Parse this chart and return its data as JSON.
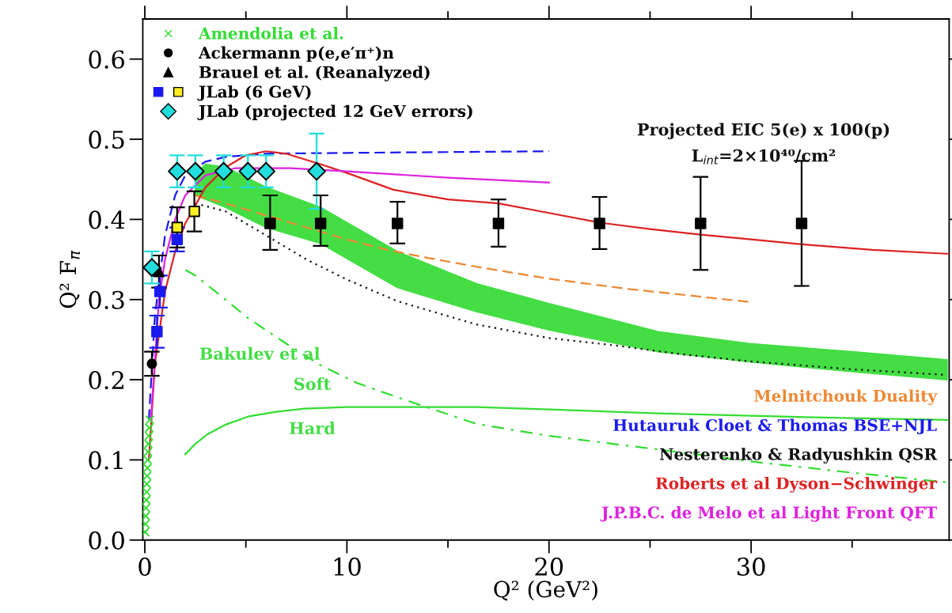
{
  "chart_data": {
    "type": "line",
    "xlabel": "Q² (GeV²)",
    "ylabel": "Q² F$_{π}$",
    "xlim": [
      -0.1,
      39.8
    ],
    "ylim": [
      0,
      0.65
    ],
    "xticks": [
      0,
      {
        "value": 5,
        "label": null
      },
      10,
      {
        "value": 15,
        "label": null
      },
      20,
      {
        "value": 25,
        "label": null
      },
      30,
      {
        "value": 35,
        "label": null
      }
    ],
    "yticks": [
      {
        "value": 0,
        "label": "0.0"
      },
      0.1,
      0.2,
      0.3,
      0.4,
      0.5,
      0.6
    ],
    "grid": false,
    "legend": "top left",
    "annotations": [
      "Projected EIC 5(e) x 100(p)",
      "L$_{int}$=2×10⁴⁰/cm²",
      "Bakulev et al",
      "Soft",
      "Hard"
    ],
    "series": [
      {
        "color": "#44dd44",
        "x": [
          2.5,
          3,
          4,
          6,
          8.7,
          12.5,
          16.4,
          20,
          25.4,
          30,
          35,
          39.7
        ],
        "values": [
          null,
          null,
          null,
          null,
          null,
          null,
          null,
          null,
          null,
          null,
          null,
          null
        ],
        "upper": [
          0.455,
          0.469,
          0.465,
          0.44,
          0.415,
          0.36,
          0.32,
          0.295,
          0.26,
          0.245,
          0.235,
          0.225
        ],
        "lower": [
          0.43,
          0.425,
          0.415,
          0.39,
          0.37,
          0.315,
          0.285,
          0.262,
          0.235,
          0.222,
          0.21,
          0.2
        ]
      },
      {
        "color": "#33dd33",
        "line_style": "dashdot",
        "x": [
          2.0,
          2.5,
          3.5,
          5.1,
          7,
          8.7,
          10.5,
          12.5,
          16.4,
          20,
          25.4,
          30,
          35,
          39.7
        ],
        "values": [
          0.337,
          0.33,
          0.31,
          0.277,
          0.245,
          0.218,
          0.196,
          0.178,
          0.145,
          0.13,
          0.113,
          0.098,
          0.084,
          0.072
        ]
      },
      {
        "color": "#33dd33",
        "line_style": "solid",
        "x": [
          2.0,
          2.5,
          3.1,
          4,
          5.1,
          6.5,
          7.9,
          10,
          12.5,
          16.4,
          20,
          25.4,
          30,
          35,
          39.7
        ],
        "values": [
          0.107,
          0.12,
          0.132,
          0.144,
          0.154,
          0.16,
          0.164,
          0.166,
          0.166,
          0.166,
          0.163,
          0.158,
          0.155,
          0.152,
          0.15
        ]
      },
      {
        "name": "Melnitchouk Duality",
        "color": "#ee8833",
        "line_style": "dashed",
        "x": [
          2.5,
          4,
          6,
          8,
          10,
          12,
          14,
          16.4,
          20,
          24,
          27,
          29.9
        ],
        "values": [
          0.43,
          0.42,
          0.405,
          0.39,
          0.375,
          0.362,
          0.352,
          0.341,
          0.326,
          0.313,
          0.305,
          0.297
        ]
      },
      {
        "name": "Hutauruk Cloet & Thomas BSE+NJL",
        "color": "#1a1aee",
        "line_style": "dashed",
        "x": [
          0.2,
          0.5,
          1,
          1.5,
          2,
          3,
          4,
          6,
          10,
          15,
          20
        ],
        "values": [
          0.15,
          0.28,
          0.38,
          0.43,
          0.455,
          0.472,
          0.478,
          0.482,
          0.483,
          0.484,
          0.485
        ]
      },
      {
        "name": "Nesterenko & Radyushkin QSR",
        "color": "#111111",
        "line_style": "dotted",
        "x": [
          2.5,
          4,
          6,
          8,
          10,
          12.5,
          16.4,
          20,
          23.2,
          26.5,
          29.9,
          35,
          39.7
        ],
        "values": [
          0.42,
          0.41,
          0.38,
          0.35,
          0.325,
          0.298,
          0.269,
          0.252,
          0.243,
          0.232,
          0.223,
          0.213,
          0.206
        ]
      },
      {
        "name": "Roberts et al Dyson−Schwinger",
        "color": "#dd2222",
        "line_style": "solid",
        "x": [
          0.2,
          0.5,
          1,
          1.5,
          2,
          3,
          4,
          5,
          6,
          7,
          8.8,
          10,
          12.3,
          15,
          17.5,
          20,
          22.5,
          25,
          27.5,
          30,
          32.5,
          36,
          39.8
        ],
        "values": [
          0.1,
          0.22,
          0.31,
          0.36,
          0.395,
          0.44,
          0.465,
          0.48,
          0.485,
          0.482,
          0.468,
          0.458,
          0.437,
          0.425,
          0.42,
          0.408,
          0.396,
          0.388,
          0.381,
          0.375,
          0.369,
          0.362,
          0.357
        ]
      },
      {
        "name": "J.P.B.C. de Melo et al Light Front QFT",
        "color": "#dd22dd",
        "line_style": "solid",
        "x": [
          0.3,
          0.7,
          1,
          1.5,
          2,
          3,
          4.5,
          7.2,
          10,
          15,
          20
        ],
        "values": [
          0.15,
          0.3,
          0.35,
          0.4,
          0.43,
          0.455,
          0.464,
          0.464,
          0.46,
          0.452,
          0.446
        ]
      },
      {
        "type": "scatter",
        "name": "Amendolia et al.",
        "color": "#33dd33",
        "marker": "cross",
        "x": [
          0.015,
          0.03,
          0.045,
          0.06,
          0.075,
          0.09,
          0.1,
          0.115,
          0.13,
          0.145,
          0.16,
          0.18,
          0.2,
          0.22,
          0.25
        ],
        "values": [
          0.01,
          0.02,
          0.03,
          0.04,
          0.05,
          0.06,
          0.07,
          0.08,
          0.09,
          0.1,
          0.11,
          0.12,
          0.13,
          0.14,
          0.15
        ]
      },
      {
        "type": "scatter",
        "name": "Ackermann p(e,e′π⁺)n",
        "color": "#000000",
        "marker": "circle",
        "x": [
          0.35
        ],
        "values": [
          0.22
        ],
        "errors": [
          0.015
        ]
      },
      {
        "type": "scatter",
        "name": "Brauel et al. (Reanalyzed)",
        "color": "#000000",
        "marker": "triangle",
        "x": [
          0.7
        ],
        "values": [
          0.335
        ],
        "errors": [
          0.02
        ]
      },
      {
        "type": "scatter",
        "name": "JLab (6 GeV)",
        "color": "#1a1aee",
        "colors": [
          "#1a1aee",
          "#1a1aee",
          "#1a1aee",
          "#ffee22",
          "#ffee22"
        ],
        "marker": "square",
        "x": [
          0.6,
          0.75,
          1.6,
          1.6,
          2.45
        ],
        "values": [
          0.26,
          0.31,
          0.375,
          0.39,
          0.41
        ],
        "errors": [
          0.02,
          0.02,
          0.015,
          0.025,
          0.025
        ]
      },
      {
        "type": "scatter",
        "name": "JLab (projected 12 GeV errors)",
        "color": "#22dddd",
        "marker": "diamond",
        "x": [
          0.35,
          1.6,
          2.5,
          3.9,
          5.1,
          6.0,
          8.5
        ],
        "values": [
          0.34,
          0.46,
          0.46,
          0.46,
          0.46,
          0.46,
          0.46
        ],
        "errors": [
          0.02,
          0.02,
          0.02,
          0.02,
          0.02,
          0.02,
          [
            0.413,
            0.507
          ]
        ]
      },
      {
        "type": "scatter",
        "color": "#000000",
        "marker": "square",
        "x": [
          6.2,
          8.7,
          12.5,
          17.5,
          22.5,
          27.5,
          32.5
        ],
        "values": [
          0.395,
          0.395,
          0.395,
          0.395,
          0.395,
          0.395,
          0.395
        ],
        "errors": [
          [
            0.362,
            0.43
          ],
          [
            0.367,
            0.43
          ],
          [
            0.37,
            0.422
          ],
          [
            0.366,
            0.425
          ],
          [
            0.363,
            0.428
          ],
          [
            0.337,
            0.453
          ],
          [
            0.317,
            0.473
          ]
        ]
      }
    ]
  }
}
